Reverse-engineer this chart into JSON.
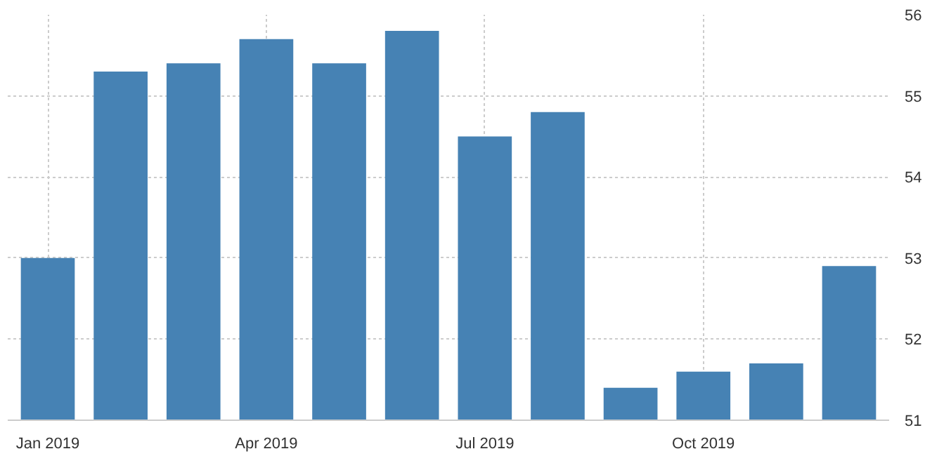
{
  "chart_data": {
    "type": "bar",
    "categories": [
      "Jan 2019",
      null,
      null,
      "Apr 2019",
      null,
      null,
      "Jul 2019",
      null,
      null,
      "Oct 2019",
      null,
      null
    ],
    "values": [
      53.0,
      55.3,
      55.4,
      55.7,
      55.4,
      55.8,
      54.5,
      54.8,
      51.4,
      51.6,
      51.7,
      52.9
    ],
    "color": "#4682b4",
    "ylim": [
      51,
      56
    ],
    "yticks": [
      51,
      52,
      53,
      54,
      55,
      56
    ],
    "grid": true
  }
}
